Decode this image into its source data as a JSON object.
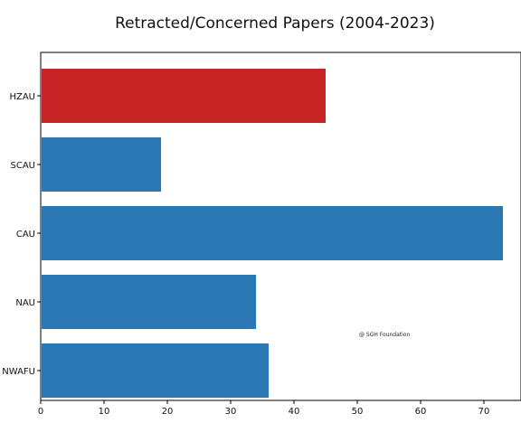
{
  "chart_data": {
    "type": "bar",
    "orientation": "horizontal",
    "title": "Retracted/Concerned Papers (2004-2023)",
    "xlabel": "",
    "ylabel": "",
    "categories": [
      "HZAU",
      "SCAU",
      "CAU",
      "NAU",
      "NWAFU"
    ],
    "values": [
      45,
      19,
      73,
      34,
      36
    ],
    "bar_colors": [
      "#c62424",
      "#2a77b4",
      "#2a77b4",
      "#2a77b4",
      "#2a77b4"
    ],
    "xlim": [
      0,
      75
    ],
    "xticks": [
      0,
      10,
      20,
      30,
      40,
      50,
      60,
      70
    ],
    "grid": false,
    "annotation": "@ SGH Foundation"
  }
}
